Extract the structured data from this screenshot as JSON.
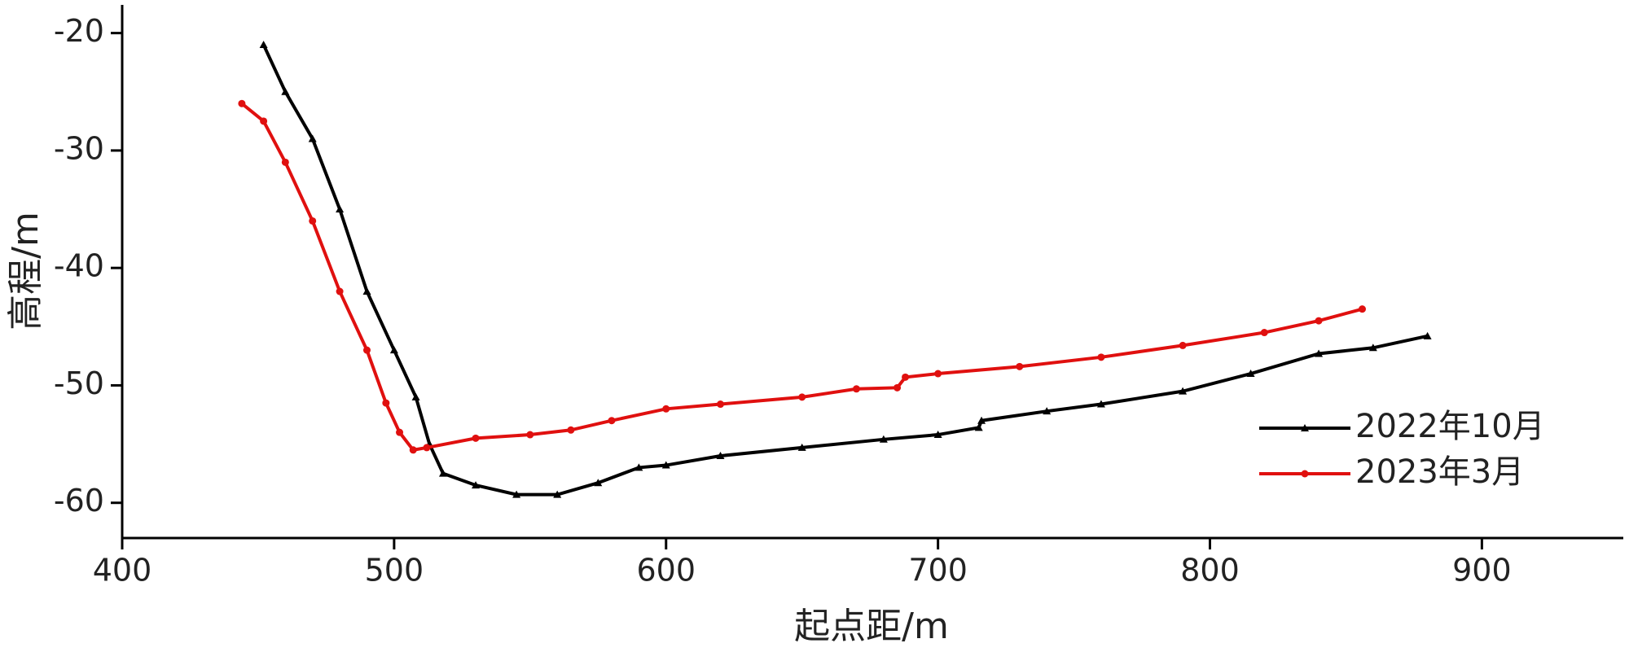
{
  "chart_data": {
    "type": "line",
    "x_label": "起点距/m",
    "y_label": "高程/m",
    "xlim": [
      400,
      952
    ],
    "ylim": [
      -63,
      -17.6
    ],
    "xticks": [
      400,
      500,
      600,
      700,
      800,
      900
    ],
    "yticks": [
      -20,
      -30,
      -40,
      -50,
      -60
    ],
    "legend": "lower right",
    "series": [
      {
        "name": "2022年10月",
        "color": "#000000",
        "marker": "triangle",
        "x": [
          452,
          460,
          470,
          480,
          490,
          500,
          508,
          513,
          518,
          530,
          545,
          560,
          575,
          590,
          600,
          620,
          650,
          680,
          700,
          715,
          716,
          740,
          760,
          790,
          815,
          840,
          860,
          880
        ],
        "values": [
          -21,
          -25,
          -29,
          -35,
          -42,
          -47,
          -51,
          -55,
          -57.5,
          -58.5,
          -59.3,
          -59.3,
          -58.3,
          -57,
          -56.8,
          -56,
          -55.3,
          -54.6,
          -54.2,
          -53.6,
          -53,
          -52.2,
          -51.6,
          -50.5,
          -49,
          -47.3,
          -46.8,
          -45.8
        ]
      },
      {
        "name": "2023年3月",
        "color": "#e0100f",
        "marker": "circle",
        "x": [
          444,
          452,
          460,
          470,
          480,
          490,
          497,
          502,
          507,
          512,
          530,
          550,
          565,
          580,
          600,
          620,
          650,
          670,
          685,
          688,
          700,
          730,
          760,
          790,
          820,
          840,
          856
        ],
        "values": [
          -26,
          -27.5,
          -31,
          -36,
          -42,
          -47,
          -51.5,
          -54,
          -55.5,
          -55.3,
          -54.5,
          -54.2,
          -53.8,
          -53,
          -52,
          -51.6,
          -51,
          -50.3,
          -50.2,
          -49.3,
          -49,
          -48.4,
          -47.6,
          -46.6,
          -45.5,
          -44.5,
          -43.5
        ]
      }
    ]
  }
}
